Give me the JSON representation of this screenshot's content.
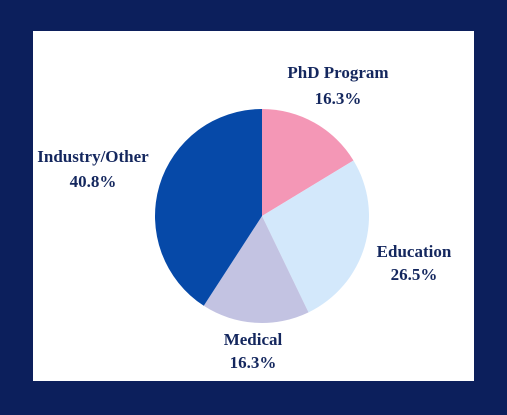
{
  "chart_data": {
    "type": "pie",
    "slices": [
      {
        "label": "PhD Program",
        "value": 16.3,
        "value_label": "16.3%",
        "color": "#f497b6"
      },
      {
        "label": "Education",
        "value": 26.5,
        "value_label": "26.5%",
        "color": "#d3e8fb"
      },
      {
        "label": "Medical",
        "value": 16.3,
        "value_label": "16.3%",
        "color": "#c3c3e2"
      },
      {
        "label": "Industry/Other",
        "value": 40.8,
        "value_label": "40.8%",
        "color": "#0649a8"
      }
    ],
    "start": "12 o'clock",
    "direction": "clockwise",
    "legend": "none",
    "background_color": "#0c1f5c",
    "panel_color": "#ffffff",
    "label_color": "#14275e"
  }
}
